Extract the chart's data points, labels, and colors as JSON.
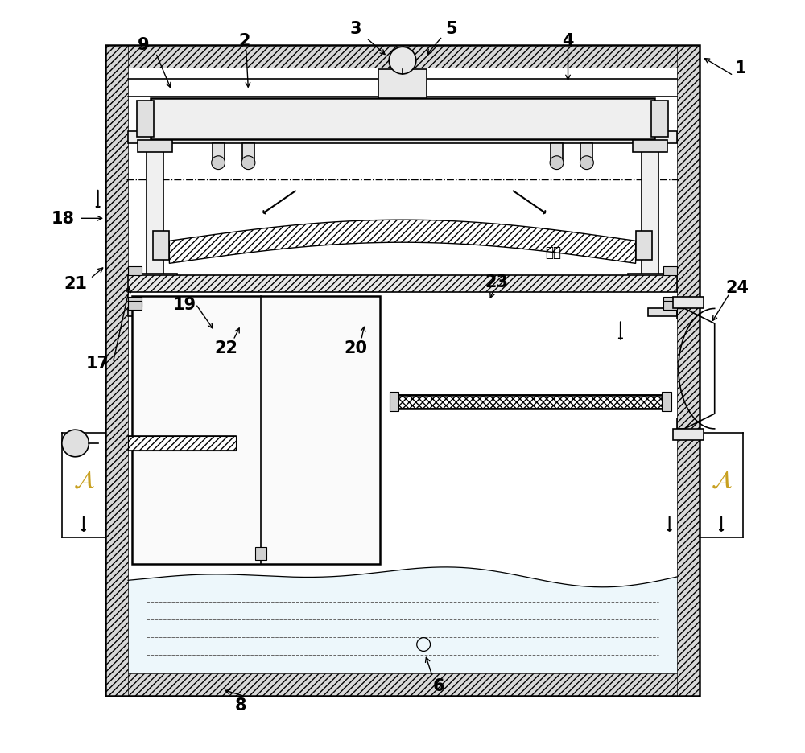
{
  "bg_color": "#ffffff",
  "lc": "#000000",
  "label_color_A": "#c8a020",
  "fig_width": 10.0,
  "fig_height": 9.37,
  "wall": 0.03,
  "ox": 0.105,
  "oy": 0.075,
  "ow": 0.79,
  "oh": 0.865
}
